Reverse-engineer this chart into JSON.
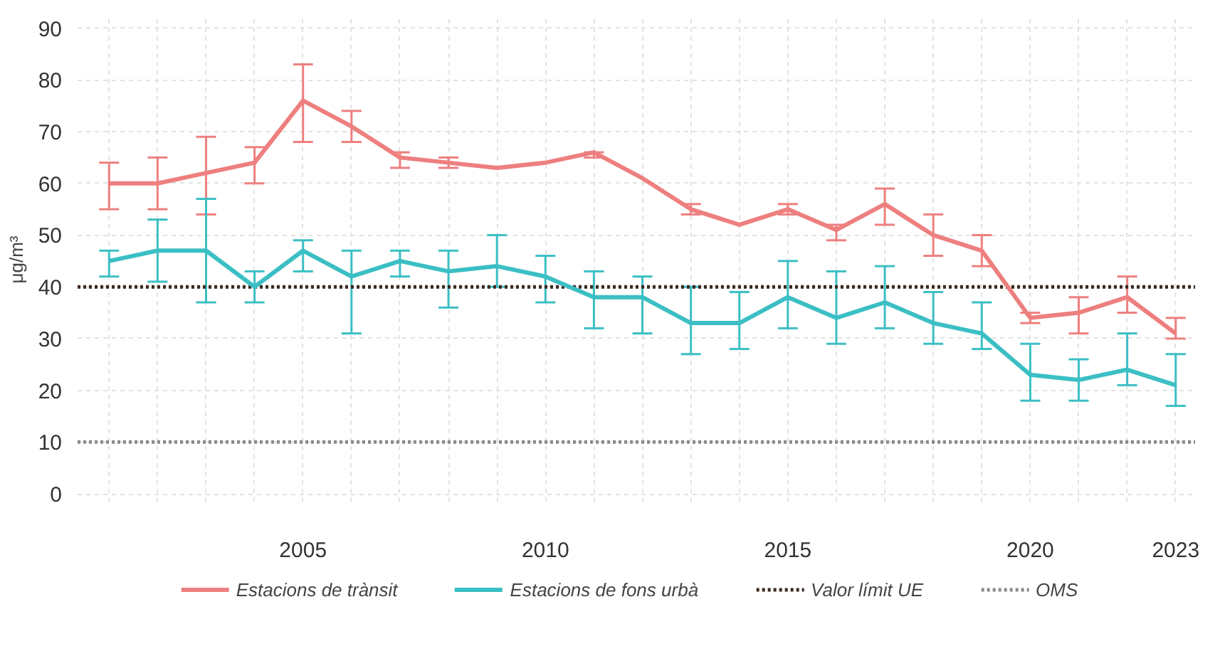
{
  "chart_data": {
    "type": "line",
    "ylabel": "μg/m³",
    "x": [
      2001,
      2002,
      2003,
      2004,
      2005,
      2006,
      2007,
      2008,
      2009,
      2010,
      2011,
      2012,
      2013,
      2014,
      2015,
      2016,
      2017,
      2018,
      2019,
      2020,
      2021,
      2022,
      2023
    ],
    "series": [
      {
        "name": "Estacions de trànsit",
        "color": "#ee7f7f",
        "values": [
          60,
          60,
          62,
          64,
          76,
          71,
          65,
          64,
          63,
          64,
          66,
          61,
          55,
          52,
          55,
          51,
          56,
          50,
          47,
          34,
          35,
          38,
          31
        ],
        "errors": [
          [
            55,
            64
          ],
          [
            55,
            65
          ],
          [
            54,
            69
          ],
          [
            60,
            67
          ],
          [
            68,
            83
          ],
          [
            68,
            74
          ],
          [
            63,
            66
          ],
          [
            63,
            65
          ],
          null,
          null,
          [
            65,
            66
          ],
          null,
          [
            54,
            56
          ],
          null,
          [
            54,
            56
          ],
          [
            49,
            52
          ],
          [
            52,
            59
          ],
          [
            46,
            54
          ],
          [
            44,
            50
          ],
          [
            33,
            35
          ],
          [
            31,
            38
          ],
          [
            35,
            42
          ],
          [
            30,
            34
          ]
        ]
      },
      {
        "name": "Estacions de fons urbà",
        "color": "#3bbfc4",
        "values": [
          45,
          47,
          47,
          40,
          47,
          42,
          45,
          43,
          44,
          42,
          38,
          38,
          33,
          33,
          38,
          34,
          37,
          33,
          31,
          23,
          22,
          24,
          21
        ],
        "errors": [
          [
            42,
            47
          ],
          [
            41,
            53
          ],
          [
            37,
            57
          ],
          [
            37,
            43
          ],
          [
            43,
            49
          ],
          [
            31,
            47
          ],
          [
            42,
            47
          ],
          [
            36,
            47
          ],
          [
            40,
            50
          ],
          [
            37,
            46
          ],
          [
            32,
            43
          ],
          [
            31,
            42
          ],
          [
            27,
            40
          ],
          [
            28,
            39
          ],
          [
            32,
            45
          ],
          [
            29,
            43
          ],
          [
            32,
            44
          ],
          [
            29,
            39
          ],
          [
            28,
            37
          ],
          [
            18,
            29
          ],
          [
            18,
            26
          ],
          [
            21,
            31
          ],
          [
            17,
            27
          ]
        ]
      }
    ],
    "ref_lines": [
      {
        "axis": "y",
        "value": 40,
        "label": "Valor límit UE",
        "color": "#3a2a20",
        "line_style": "dotted"
      },
      {
        "axis": "y",
        "value": 10,
        "label": "OMS",
        "color": "#8a8a8a",
        "line_style": "dotted"
      }
    ],
    "xlim": [
      2000.35,
      2023.4
    ],
    "ylim": [
      -1.5,
      92
    ],
    "xticks": [
      {
        "value": 2001,
        "label": null
      },
      {
        "value": 2002,
        "label": null
      },
      {
        "value": 2003,
        "label": null
      },
      {
        "value": 2004,
        "label": null
      },
      2005,
      {
        "value": 2006,
        "label": null
      },
      {
        "value": 2007,
        "label": null
      },
      {
        "value": 2008,
        "label": null
      },
      {
        "value": 2009,
        "label": null
      },
      2010,
      {
        "value": 2011,
        "label": null
      },
      {
        "value": 2012,
        "label": null
      },
      {
        "value": 2013,
        "label": null
      },
      {
        "value": 2014,
        "label": null
      },
      2015,
      {
        "value": 2016,
        "label": null
      },
      {
        "value": 2017,
        "label": null
      },
      {
        "value": 2018,
        "label": null
      },
      {
        "value": 2019,
        "label": null
      },
      2020,
      {
        "value": 2021,
        "label": null
      },
      {
        "value": 2022,
        "label": null
      },
      2023
    ],
    "yticks": [
      0,
      10,
      20,
      30,
      40,
      50,
      60,
      70,
      80,
      90
    ],
    "grid": true,
    "legend": "bottom",
    "marker": "none",
    "line_style": "solid"
  }
}
